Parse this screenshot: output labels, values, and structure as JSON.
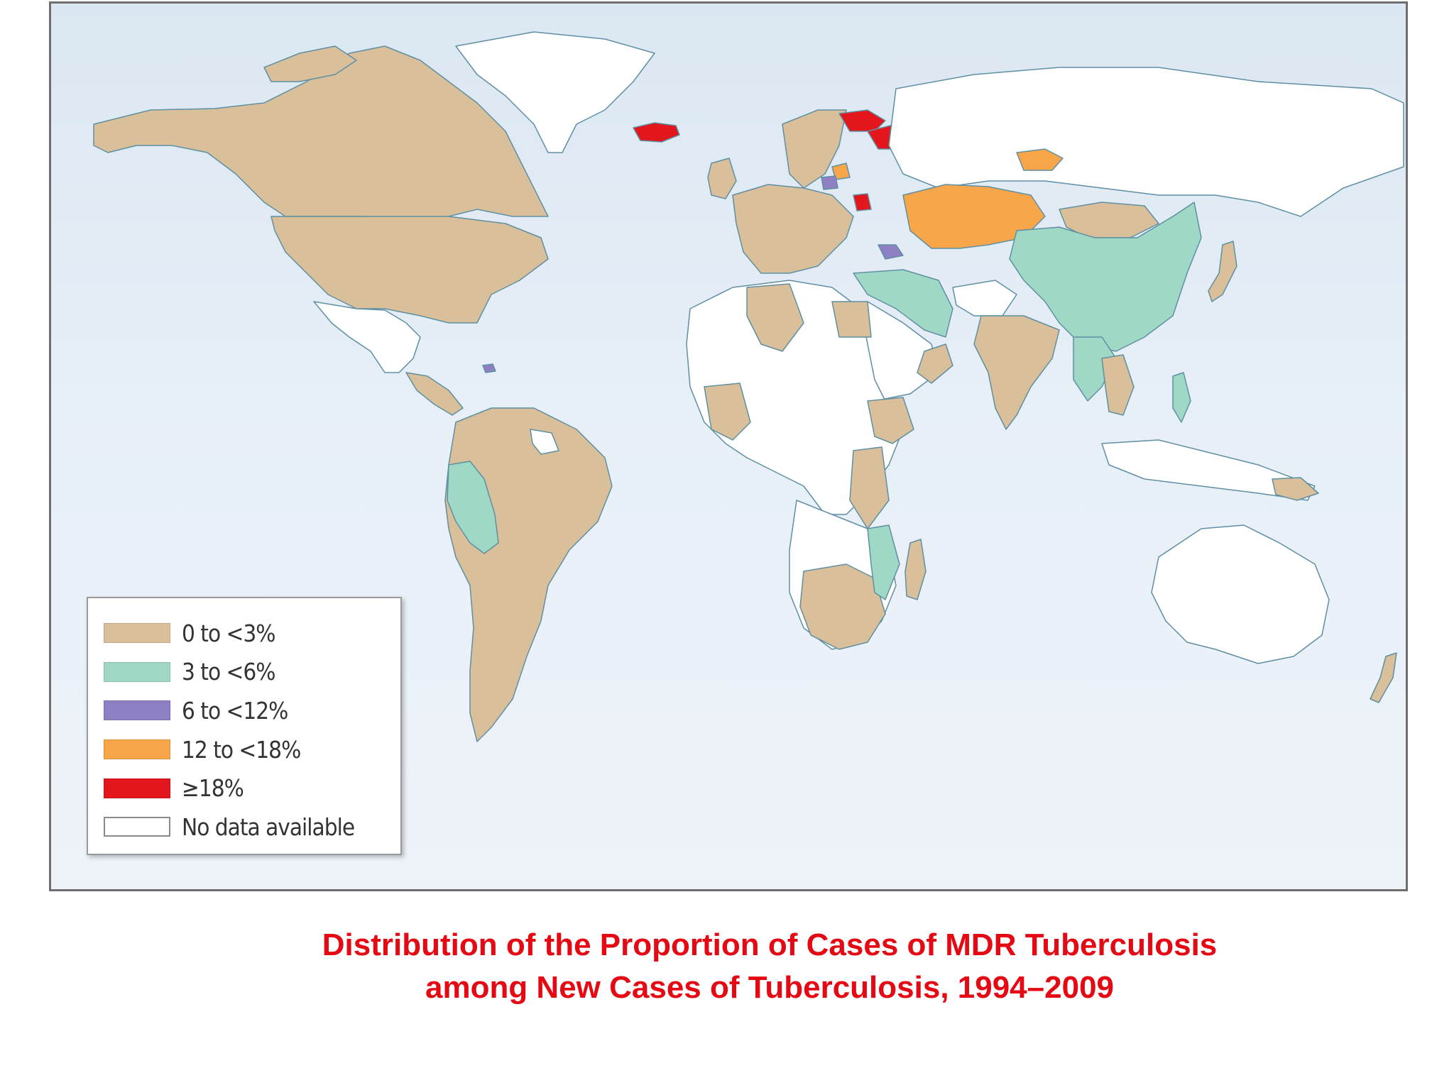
{
  "map": {
    "legend": [
      {
        "label": "0 to <3%",
        "color": "#d9c09a"
      },
      {
        "label": "3 to <6%",
        "color": "#9fd9c6"
      },
      {
        "label": "6 to <12%",
        "color": "#8f7fc4"
      },
      {
        "label": "12 to <18%",
        "color": "#f7a64a"
      },
      {
        "label": "≥18%",
        "color": "#e3161d"
      },
      {
        "label": "No data available",
        "color": "#ffffff"
      }
    ],
    "ocean_color": "#e3ecf5",
    "border_color": "#5f8fa3"
  },
  "caption": {
    "line1": "Distribution of the Proportion of Cases of MDR Tuberculosis",
    "line2": "among New Cases of Tuberculosis, 1994–2009"
  }
}
